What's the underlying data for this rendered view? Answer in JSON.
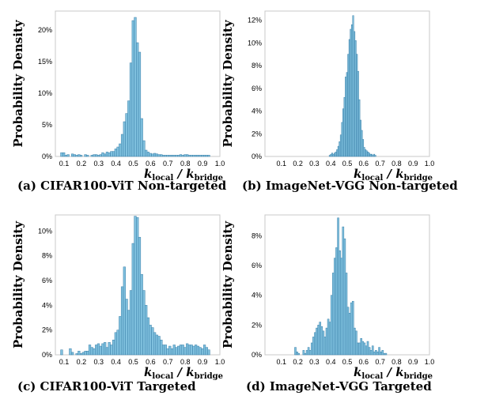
{
  "figure": {
    "panels": [
      {
        "caption": "(a) CIFAR100-ViT Non-targeted"
      },
      {
        "caption": "(b) ImageNet-VGG Non-targeted"
      },
      {
        "caption": "(c) CIFAR100-ViT Targeted"
      },
      {
        "caption": "(d) ImageNet-VGG Targeted"
      }
    ]
  },
  "chart_data": [
    {
      "type": "bar",
      "ylabel": "Probability Density",
      "xlabel_main": "k",
      "xlabel_sub1": "local",
      "xlabel_sep": " / ",
      "xlabel_sub2": "bridge",
      "xlim": [
        0.05,
        1.0
      ],
      "ylim": [
        0,
        23
      ],
      "xticks": [
        "0.1",
        "0.2",
        "0.3",
        "0.4",
        "0.5",
        "0.6",
        "0.7",
        "0.8",
        "0.9",
        "1.0"
      ],
      "yticks": [
        {
          "v": 0,
          "label": "0%"
        },
        {
          "v": 5,
          "label": "5%"
        },
        {
          "v": 10,
          "label": "10%"
        },
        {
          "v": 15,
          "label": "15%"
        },
        {
          "v": 20,
          "label": "20%"
        }
      ],
      "bar_color": "#7fc0de",
      "bin_start": 0.08,
      "bin_width": 0.0125,
      "values": [
        0.6,
        0.6,
        0.2,
        0.3,
        0,
        0.4,
        0.3,
        0.2,
        0.3,
        0.2,
        0,
        0.3,
        0.2,
        0,
        0.2,
        0.3,
        0.3,
        0.2,
        0.3,
        0.6,
        0.4,
        0.7,
        0.6,
        0.8,
        0.8,
        1.2,
        1.5,
        2.0,
        3.5,
        5.5,
        6.8,
        8.8,
        14.8,
        21.5,
        22.0,
        18.0,
        16.5,
        6.0,
        2.5,
        1.0,
        0.7,
        0.5,
        0.4,
        0.5,
        0.4,
        0.3,
        0.3,
        0.2,
        0.2,
        0.2,
        0.2,
        0.2,
        0.2,
        0.2,
        0.2,
        0.3,
        0.2,
        0.3,
        0.3,
        0.2,
        0.2,
        0.2,
        0.2,
        0.2,
        0.2,
        0.2,
        0.2,
        0.2,
        0.2
      ]
    },
    {
      "type": "bar",
      "ylabel": "Probability Density",
      "xlabel_main": "k",
      "xlabel_sub1": "local",
      "xlabel_sep": " / ",
      "xlabel_sub2": "bridge",
      "xlim": [
        0.0,
        1.0
      ],
      "ylim": [
        0,
        12.8
      ],
      "xticks": [
        "0.1",
        "0.2",
        "0.3",
        "0.4",
        "0.5",
        "0.6",
        "0.7",
        "0.8",
        "0.9",
        "1.0"
      ],
      "yticks": [
        {
          "v": 0,
          "label": "0%"
        },
        {
          "v": 2,
          "label": "2%"
        },
        {
          "v": 4,
          "label": "4%"
        },
        {
          "v": 6,
          "label": "6%"
        },
        {
          "v": 8,
          "label": "8%"
        },
        {
          "v": 10,
          "label": "10%"
        },
        {
          "v": 12,
          "label": "12%"
        }
      ],
      "bar_color": "#7fc0de",
      "bin_start": 0.39,
      "bin_width": 0.0075,
      "values": [
        0.1,
        0.2,
        0.3,
        0.2,
        0.3,
        0.4,
        0.6,
        0.9,
        1.3,
        1.9,
        3.0,
        4.2,
        5.2,
        7.0,
        7.4,
        9.0,
        10.3,
        11.2,
        11.6,
        12.4,
        11.0,
        10.2,
        9.0,
        7.5,
        5.0,
        3.2,
        2.3,
        1.5,
        0.8,
        0.6,
        0.5,
        0.4,
        0.3,
        0.2,
        0.2,
        0.1,
        0.2,
        0.1
      ]
    },
    {
      "type": "bar",
      "ylabel": "Probability Density",
      "xlabel_main": "k",
      "xlabel_sub1": "local",
      "xlabel_sep": " / ",
      "xlabel_sub2": "bridge",
      "xlim": [
        0.05,
        1.0
      ],
      "ylim": [
        0,
        11.3
      ],
      "xticks": [
        "0.1",
        "0.2",
        "0.3",
        "0.4",
        "0.5",
        "0.6",
        "0.7",
        "0.8",
        "0.9",
        "1.0"
      ],
      "yticks": [
        {
          "v": 0,
          "label": "0%"
        },
        {
          "v": 2,
          "label": "2%"
        },
        {
          "v": 4,
          "label": "4%"
        },
        {
          "v": 6,
          "label": "6%"
        },
        {
          "v": 8,
          "label": "8%"
        },
        {
          "v": 10,
          "label": "10%"
        }
      ],
      "bar_color": "#7fc0de",
      "bin_start": 0.08,
      "bin_width": 0.0125,
      "values": [
        0.4,
        0,
        0,
        0,
        0.5,
        0.2,
        0,
        0.1,
        0.3,
        0.1,
        0.2,
        0.3,
        0.3,
        0.8,
        0.6,
        0.5,
        0.8,
        0.9,
        0.7,
        0.9,
        1.0,
        0.6,
        1.0,
        0.8,
        1.2,
        1.8,
        2.0,
        3.1,
        5.5,
        7.1,
        4.5,
        3.6,
        5.2,
        9.0,
        11.2,
        11.1,
        9.5,
        6.5,
        5.2,
        4.0,
        3.0,
        2.4,
        2.2,
        1.8,
        1.6,
        1.5,
        1.2,
        0.8,
        0.8,
        0.5,
        0.7,
        0.5,
        0.8,
        0.6,
        0.7,
        0.8,
        0.8,
        0.6,
        0.9,
        0.8,
        0.8,
        0.7,
        0.8,
        0.7,
        0.6,
        0.5,
        0.8,
        0.6,
        0.4
      ]
    },
    {
      "type": "bar",
      "ylabel": "Probability Density",
      "xlabel_main": "k",
      "xlabel_sub1": "local",
      "xlabel_sep": " / ",
      "xlabel_sub2": "bridge",
      "xlim": [
        0.0,
        1.0
      ],
      "ylim": [
        0,
        9.4
      ],
      "xticks": [
        "0.1",
        "0.2",
        "0.3",
        "0.4",
        "0.5",
        "0.6",
        "0.7",
        "0.8",
        "0.9",
        "1.0"
      ],
      "yticks": [
        {
          "v": 0,
          "label": "0%"
        },
        {
          "v": 2,
          "label": "2%"
        },
        {
          "v": 4,
          "label": "4%"
        },
        {
          "v": 6,
          "label": "6%"
        },
        {
          "v": 8,
          "label": "8%"
        }
      ],
      "bar_color": "#7fc0de",
      "bin_start": 0.18,
      "bin_width": 0.01,
      "values": [
        0.5,
        0.2,
        0.1,
        0,
        0,
        0.3,
        0.1,
        0.3,
        0.5,
        0.3,
        0.8,
        1.2,
        1.5,
        1.8,
        2.0,
        2.2,
        1.9,
        1.6,
        1.2,
        1.8,
        2.4,
        2.2,
        4.0,
        5.5,
        6.5,
        7.2,
        9.2,
        7.0,
        6.5,
        8.6,
        7.8,
        5.5,
        3.2,
        2.8,
        3.5,
        3.6,
        1.8,
        1.6,
        0.8,
        0.8,
        1.1,
        0.9,
        0.8,
        0.6,
        0.9,
        0.5,
        0.3,
        0.6,
        0.2,
        0.3,
        0.2,
        0.5,
        0.2,
        0.3,
        0.1,
        0.1
      ]
    }
  ]
}
